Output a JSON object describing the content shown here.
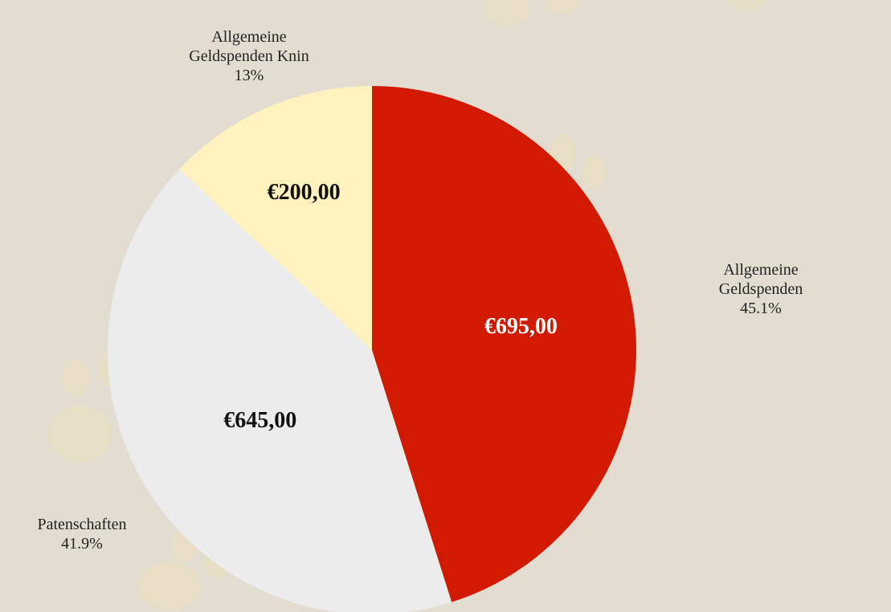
{
  "chart_data": {
    "type": "pie",
    "categories": [
      "Allgemeine Geldspenden",
      "Patenschaften",
      "Allgemeine Geldspenden Knin"
    ],
    "values": [
      695,
      645,
      200
    ],
    "value_labels": [
      "€695,00",
      "€645,00",
      "€200,00"
    ],
    "shares": [
      45.1,
      41.9,
      13
    ],
    "share_labels": [
      "45.1%",
      "41.9%",
      "13%"
    ],
    "colors": [
      "#d11a00",
      "#ececec",
      "#fff2bf"
    ]
  }
}
